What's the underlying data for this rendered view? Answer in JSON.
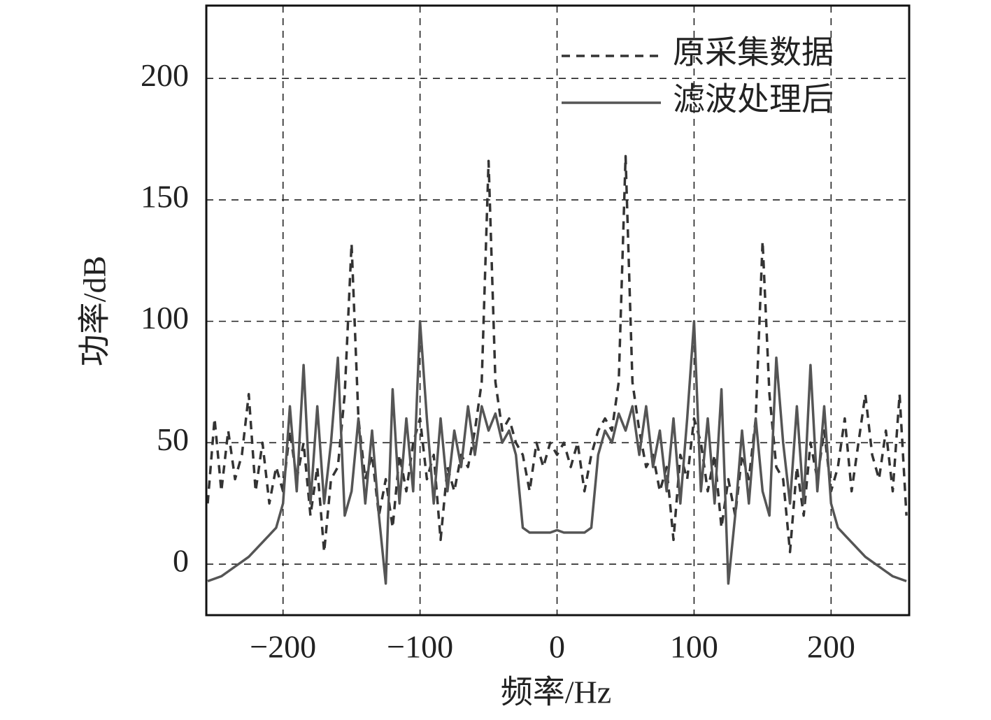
{
  "chart_data": {
    "type": "line",
    "xlabel": "频率/Hz",
    "ylabel": "功率/dB",
    "x": [
      -255,
      -250,
      -245,
      -240,
      -235,
      -230,
      -225,
      -220,
      -215,
      -210,
      -205,
      -200,
      -195,
      -190,
      -185,
      -180,
      -175,
      -170,
      -165,
      -160,
      -155,
      -150,
      -145,
      -140,
      -135,
      -130,
      -125,
      -120,
      -115,
      -110,
      -105,
      -100,
      -95,
      -90,
      -85,
      -80,
      -75,
      -70,
      -65,
      -60,
      -55,
      -50,
      -45,
      -40,
      -35,
      -30,
      -25,
      -20,
      -15,
      -10,
      -5,
      0,
      5,
      10,
      15,
      20,
      25,
      30,
      35,
      40,
      45,
      50,
      55,
      60,
      65,
      70,
      75,
      80,
      85,
      90,
      95,
      100,
      105,
      110,
      115,
      120,
      125,
      130,
      135,
      140,
      145,
      150,
      155,
      160,
      165,
      170,
      175,
      180,
      185,
      190,
      195,
      200,
      205,
      210,
      215,
      220,
      225,
      230,
      235,
      240,
      245,
      250,
      255
    ],
    "series": [
      {
        "name": "原采集数据",
        "color": "#333333",
        "dashed": true,
        "values": [
          25,
          60,
          30,
          55,
          35,
          45,
          70,
          30,
          50,
          25,
          40,
          30,
          55,
          35,
          50,
          20,
          40,
          5,
          35,
          40,
          70,
          132,
          60,
          35,
          45,
          20,
          35,
          15,
          45,
          30,
          50,
          60,
          35,
          45,
          10,
          40,
          30,
          45,
          40,
          55,
          75,
          166,
          75,
          55,
          60,
          50,
          45,
          30,
          50,
          40,
          50,
          45,
          50,
          40,
          50,
          30,
          45,
          55,
          60,
          55,
          75,
          168,
          75,
          55,
          40,
          45,
          30,
          40,
          10,
          45,
          35,
          60,
          50,
          30,
          45,
          15,
          35,
          20,
          45,
          35,
          60,
          133,
          70,
          40,
          35,
          5,
          40,
          20,
          50,
          35,
          55,
          30,
          40,
          60,
          30,
          50,
          70,
          45,
          35,
          55,
          30,
          70,
          20
        ]
      },
      {
        "name": "滤波处理后",
        "color": "#555555",
        "dashed": false,
        "values": [
          -7,
          -6,
          -5,
          -3,
          -1,
          1,
          3,
          6,
          9,
          12,
          15,
          25,
          65,
          30,
          82,
          25,
          65,
          25,
          50,
          85,
          20,
          30,
          60,
          25,
          55,
          20,
          -8,
          72,
          25,
          60,
          30,
          100,
          60,
          25,
          60,
          30,
          55,
          40,
          65,
          45,
          65,
          55,
          62,
          50,
          55,
          45,
          15,
          13,
          13,
          13,
          13,
          14,
          13,
          13,
          13,
          13,
          15,
          45,
          55,
          50,
          62,
          55,
          65,
          45,
          65,
          40,
          55,
          30,
          60,
          25,
          60,
          100,
          30,
          60,
          25,
          72,
          -8,
          20,
          55,
          25,
          60,
          30,
          20,
          85,
          50,
          25,
          65,
          25,
          82,
          30,
          65,
          25,
          15,
          12,
          9,
          6,
          3,
          1,
          -1,
          -3,
          -5,
          -6,
          -7
        ]
      }
    ],
    "xlim": [
      -256,
      257
    ],
    "xticks": [
      {
        "value": -200,
        "label": "−200"
      },
      {
        "value": -100,
        "label": "−100"
      },
      0,
      100,
      200
    ],
    "ylim": [
      -21,
      230
    ],
    "yticks": [
      0,
      50,
      100,
      150,
      200
    ],
    "grid": true,
    "legend": "upper right"
  }
}
